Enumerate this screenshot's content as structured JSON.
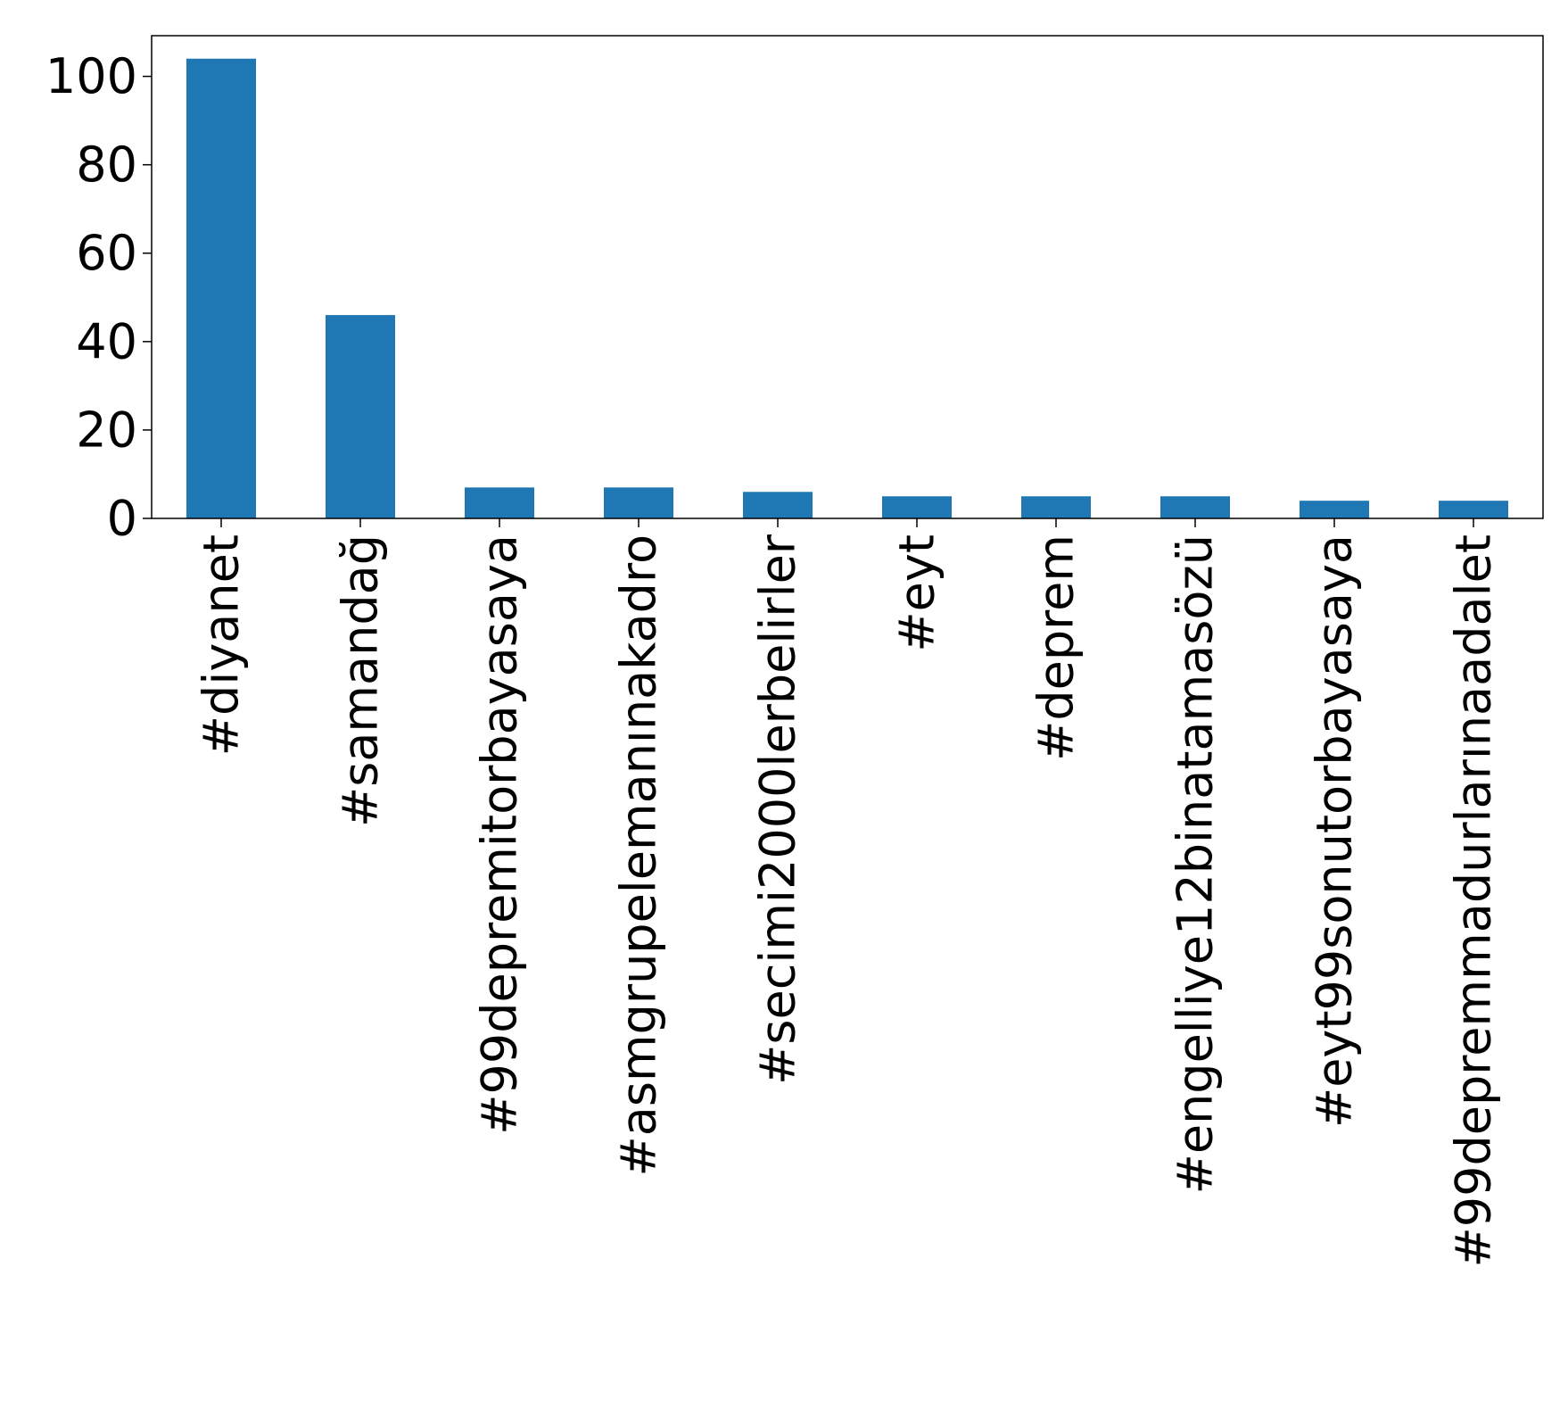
{
  "chart_data": {
    "type": "bar",
    "categories": [
      "#diyanet",
      "#samandağ",
      "#99depremitorbayasaya",
      "#asmgrupelemanınakadro",
      "#secimi2000lerbelirler",
      "#eyt",
      "#deprem",
      "#engelliye12binatamasözü",
      "#eyt99sonutorbayasaya",
      "#99depremmadurlarınaadalet"
    ],
    "values": [
      104,
      46,
      7,
      7,
      6,
      5,
      5,
      5,
      4,
      4
    ],
    "title": "",
    "xlabel": "",
    "ylabel": "",
    "ylim": [
      0,
      109.2
    ],
    "yticks": [
      0,
      20,
      40,
      60,
      80,
      100
    ],
    "grid": false,
    "bar_color": "#1f77b4"
  }
}
